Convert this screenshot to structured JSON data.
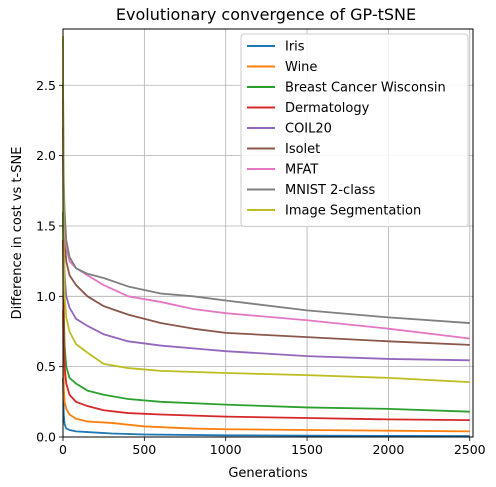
{
  "chart_data": {
    "type": "line",
    "title": "Evolutionary convergence of GP-tSNE",
    "xlabel": "Generations",
    "ylabel": "Difference in cost vs t-SNE",
    "xlim": [
      0,
      2520
    ],
    "ylim": [
      0,
      2.9
    ],
    "xticks": [
      0,
      500,
      1000,
      1500,
      2000,
      2500
    ],
    "xtick_labels": [
      "0",
      "500",
      "1000",
      "1500",
      "2000",
      "2500"
    ],
    "yticks": [
      0.0,
      0.5,
      1.0,
      1.5,
      2.0,
      2.5
    ],
    "ytick_labels": [
      "0.0",
      "0.5",
      "1.0",
      "1.5",
      "2.0",
      "2.5"
    ],
    "grid": true,
    "legend_position": "top-right",
    "series": [
      {
        "name": "Iris",
        "color": "#1f77b4",
        "x": [
          0,
          5,
          10,
          20,
          40,
          80,
          150,
          300,
          500,
          1000,
          1500,
          2000,
          2500
        ],
        "y": [
          0.42,
          0.15,
          0.09,
          0.06,
          0.05,
          0.04,
          0.035,
          0.025,
          0.018,
          0.012,
          0.01,
          0.008,
          0.007
        ]
      },
      {
        "name": "Wine",
        "color": "#ff7f0e",
        "x": [
          0,
          5,
          10,
          20,
          40,
          80,
          150,
          300,
          500,
          800,
          1000,
          1500,
          2000,
          2500
        ],
        "y": [
          0.9,
          0.35,
          0.25,
          0.2,
          0.16,
          0.13,
          0.11,
          0.1,
          0.075,
          0.06,
          0.055,
          0.05,
          0.045,
          0.04
        ]
      },
      {
        "name": "Breast Cancer Wisconsin",
        "color": "#2ca02c",
        "x": [
          0,
          5,
          10,
          20,
          40,
          80,
          150,
          250,
          400,
          600,
          1000,
          1500,
          2000,
          2500
        ],
        "y": [
          1.6,
          0.9,
          0.65,
          0.5,
          0.42,
          0.38,
          0.33,
          0.3,
          0.27,
          0.25,
          0.23,
          0.21,
          0.2,
          0.18
        ]
      },
      {
        "name": "Dermatology",
        "color": "#d62728",
        "x": [
          0,
          5,
          10,
          20,
          40,
          80,
          150,
          250,
          400,
          600,
          1000,
          1500,
          2000,
          2500
        ],
        "y": [
          1.4,
          0.7,
          0.5,
          0.38,
          0.3,
          0.25,
          0.22,
          0.19,
          0.17,
          0.16,
          0.145,
          0.135,
          0.125,
          0.12
        ]
      },
      {
        "name": "COIL20",
        "color": "#9467bd",
        "x": [
          0,
          5,
          10,
          20,
          40,
          80,
          150,
          250,
          400,
          600,
          800,
          1000,
          1500,
          2000,
          2500
        ],
        "y": [
          2.0,
          1.35,
          1.15,
          1.0,
          0.92,
          0.84,
          0.79,
          0.73,
          0.68,
          0.65,
          0.63,
          0.61,
          0.575,
          0.555,
          0.545
        ]
      },
      {
        "name": "Isolet",
        "color": "#8c564b",
        "x": [
          0,
          5,
          10,
          20,
          40,
          80,
          150,
          250,
          400,
          600,
          800,
          1000,
          1500,
          2000,
          2500
        ],
        "y": [
          2.2,
          1.6,
          1.4,
          1.25,
          1.15,
          1.08,
          1.0,
          0.93,
          0.87,
          0.81,
          0.77,
          0.74,
          0.71,
          0.68,
          0.655
        ]
      },
      {
        "name": "MFAT",
        "color": "#e377c2",
        "x": [
          0,
          5,
          10,
          20,
          40,
          80,
          150,
          250,
          400,
          600,
          800,
          1000,
          1500,
          2000,
          2500
        ],
        "y": [
          2.4,
          1.7,
          1.5,
          1.35,
          1.25,
          1.2,
          1.15,
          1.08,
          1.0,
          0.96,
          0.91,
          0.88,
          0.83,
          0.77,
          0.7
        ]
      },
      {
        "name": "MNIST 2-class",
        "color": "#7f7f7f",
        "x": [
          0,
          5,
          10,
          20,
          40,
          80,
          150,
          250,
          400,
          600,
          800,
          1000,
          1500,
          2000,
          2500
        ],
        "y": [
          2.5,
          1.8,
          1.6,
          1.4,
          1.28,
          1.2,
          1.16,
          1.13,
          1.07,
          1.02,
          1.0,
          0.97,
          0.9,
          0.85,
          0.81
        ]
      },
      {
        "name": "Image Segmentation",
        "color": "#bcbd22",
        "x": [
          0,
          3,
          5,
          10,
          20,
          40,
          80,
          150,
          250,
          400,
          600,
          1000,
          1500,
          2000,
          2500
        ],
        "y": [
          2.85,
          1.6,
          1.3,
          1.0,
          0.85,
          0.75,
          0.66,
          0.6,
          0.52,
          0.49,
          0.47,
          0.455,
          0.44,
          0.42,
          0.39
        ]
      }
    ]
  }
}
